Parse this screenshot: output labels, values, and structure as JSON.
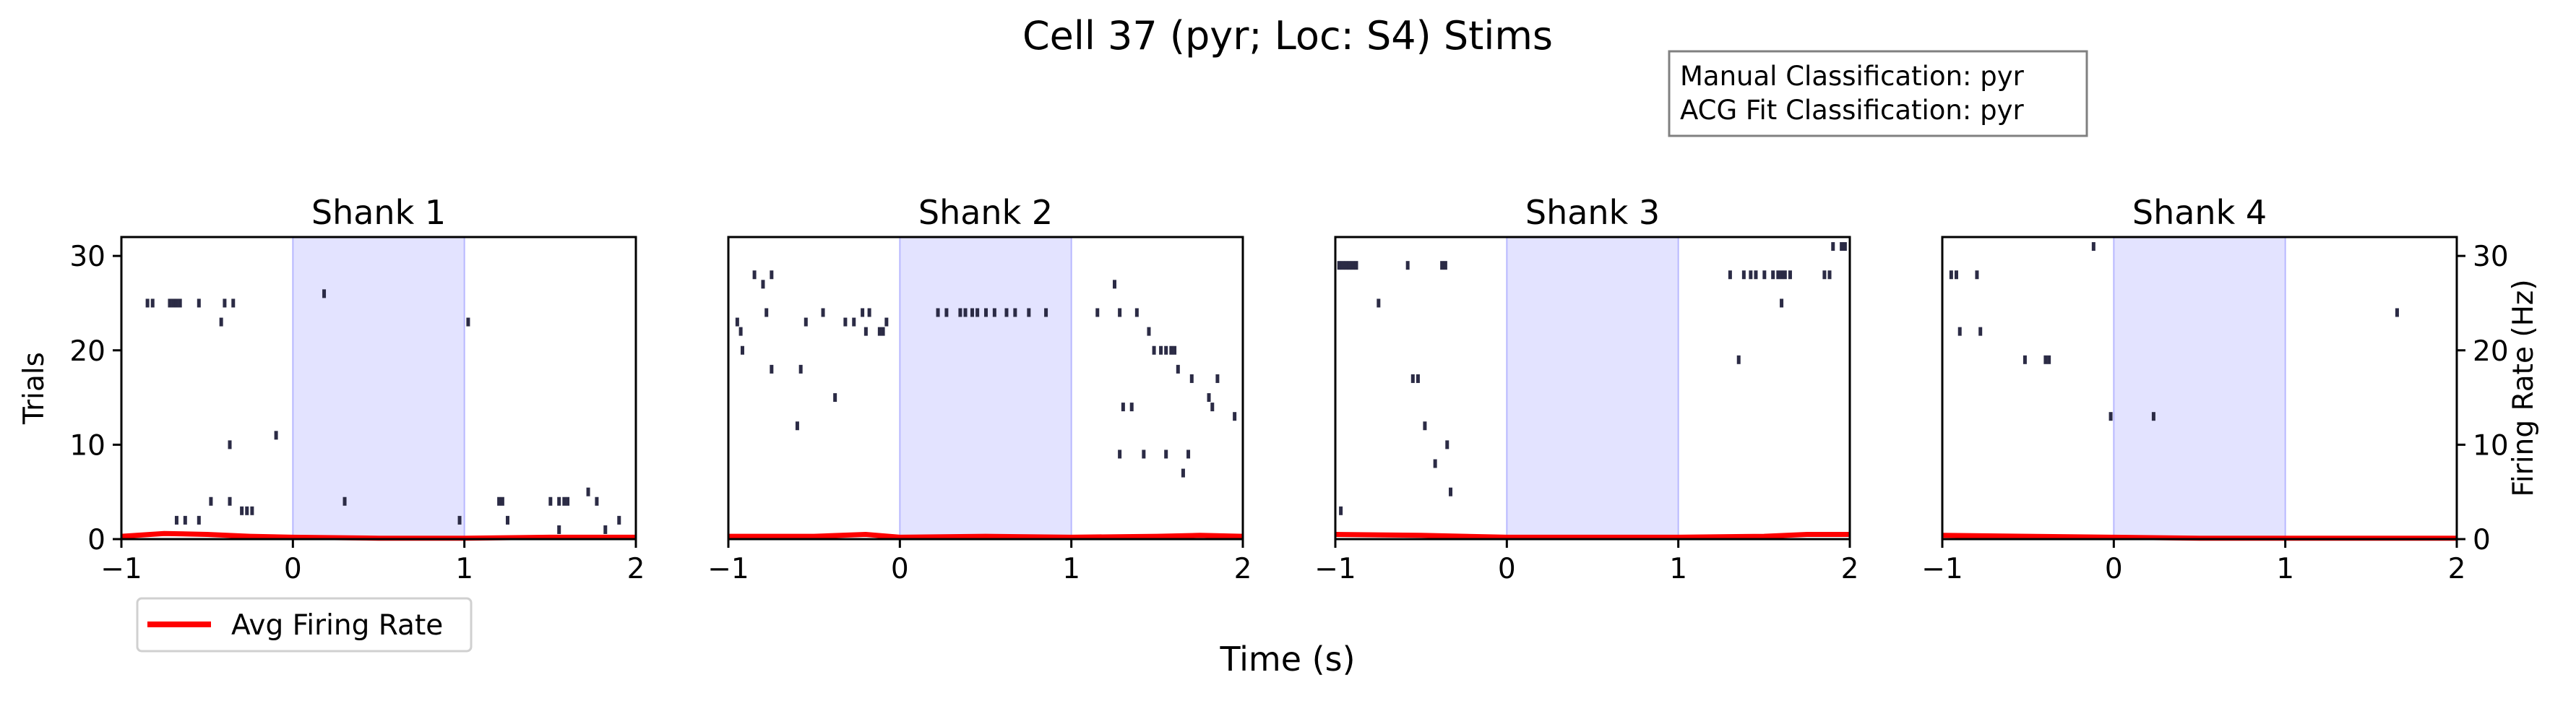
{
  "title": "Cell 37 (pyr; Loc: S4) Stims",
  "classification": {
    "line1": "Manual Classification: pyr",
    "line2": "ACG Fit Classification: pyr"
  },
  "shared_xlabel": "Time (s)",
  "legend": {
    "label": "Avg Firing Rate",
    "color": "#ff0000",
    "placement": "below first panel"
  },
  "colors": {
    "spike": "#2b2b45",
    "stim": "#e3e3ff",
    "rate": "#ff0000"
  },
  "chart_data": [
    {
      "type": "raster",
      "title": "Shank 1",
      "ylabel": "Trials",
      "xlim": [
        -1,
        2
      ],
      "ylim": [
        0,
        32
      ],
      "xticks": [
        "−1",
        "0",
        "1",
        "2"
      ],
      "yticks": [
        "0",
        "10",
        "20",
        "30"
      ],
      "stim_window": [
        0,
        1
      ],
      "spikes": [
        [
          -0.85,
          25
        ],
        [
          -0.82,
          25
        ],
        [
          -0.72,
          25
        ],
        [
          -0.7,
          25
        ],
        [
          -0.68,
          25
        ],
        [
          -0.66,
          25
        ],
        [
          -0.55,
          25
        ],
        [
          -0.4,
          25
        ],
        [
          -0.35,
          25
        ],
        [
          -0.42,
          23
        ],
        [
          -0.68,
          2
        ],
        [
          -0.63,
          2
        ],
        [
          -0.55,
          2
        ],
        [
          -0.48,
          4
        ],
        [
          -0.37,
          4
        ],
        [
          -0.3,
          3
        ],
        [
          -0.27,
          3
        ],
        [
          -0.24,
          3
        ],
        [
          -0.37,
          10
        ],
        [
          -0.1,
          11
        ],
        [
          0.18,
          26
        ],
        [
          0.3,
          4
        ],
        [
          1.02,
          23
        ],
        [
          0.97,
          2
        ],
        [
          1.2,
          4
        ],
        [
          1.22,
          4
        ],
        [
          1.25,
          2
        ],
        [
          1.5,
          4
        ],
        [
          1.55,
          4
        ],
        [
          1.58,
          4
        ],
        [
          1.6,
          4
        ],
        [
          1.55,
          1
        ],
        [
          1.72,
          5
        ],
        [
          1.77,
          4
        ],
        [
          1.82,
          1
        ],
        [
          1.9,
          2
        ]
      ],
      "rate": {
        "x": [
          -1,
          -0.75,
          -0.5,
          -0.25,
          0,
          0.5,
          1,
          1.5,
          2
        ],
        "y": [
          0.3,
          0.6,
          0.5,
          0.3,
          0.2,
          0.1,
          0.1,
          0.2,
          0.2
        ]
      },
      "right_axis": false
    },
    {
      "type": "raster",
      "title": "Shank 2",
      "ylabel": "",
      "xlim": [
        -1,
        2
      ],
      "ylim": [
        0,
        32
      ],
      "xticks": [
        "−1",
        "0",
        "1",
        "2"
      ],
      "yticks": [],
      "stim_window": [
        0,
        1
      ],
      "spikes": [
        [
          -0.85,
          28
        ],
        [
          -0.8,
          27
        ],
        [
          -0.75,
          28
        ],
        [
          -0.78,
          24
        ],
        [
          -0.95,
          23
        ],
        [
          -0.93,
          22
        ],
        [
          -0.92,
          20
        ],
        [
          -0.75,
          18
        ],
        [
          -0.58,
          18
        ],
        [
          -0.55,
          23
        ],
        [
          -0.45,
          24
        ],
        [
          -0.6,
          12
        ],
        [
          -0.38,
          15
        ],
        [
          -0.32,
          23
        ],
        [
          -0.22,
          24
        ],
        [
          -0.2,
          22
        ],
        [
          -0.18,
          24
        ],
        [
          -0.12,
          22
        ],
        [
          -0.1,
          22
        ],
        [
          -0.08,
          23
        ],
        [
          -0.27,
          23
        ],
        [
          0.22,
          24
        ],
        [
          0.27,
          24
        ],
        [
          0.35,
          24
        ],
        [
          0.38,
          24
        ],
        [
          0.42,
          24
        ],
        [
          0.45,
          24
        ],
        [
          0.5,
          24
        ],
        [
          0.55,
          24
        ],
        [
          0.62,
          24
        ],
        [
          0.67,
          24
        ],
        [
          0.75,
          24
        ],
        [
          0.85,
          24
        ],
        [
          1.15,
          24
        ],
        [
          1.25,
          27
        ],
        [
          1.28,
          24
        ],
        [
          1.38,
          24
        ],
        [
          1.45,
          22
        ],
        [
          1.48,
          20
        ],
        [
          1.52,
          20
        ],
        [
          1.55,
          20
        ],
        [
          1.58,
          20
        ],
        [
          1.6,
          20
        ],
        [
          1.62,
          18
        ],
        [
          1.7,
          17
        ],
        [
          1.8,
          15
        ],
        [
          1.82,
          14
        ],
        [
          1.85,
          17
        ],
        [
          1.95,
          13
        ],
        [
          1.28,
          9
        ],
        [
          1.3,
          14
        ],
        [
          1.35,
          14
        ],
        [
          1.42,
          9
        ],
        [
          1.55,
          9
        ],
        [
          1.65,
          7
        ],
        [
          1.68,
          9
        ]
      ],
      "rate": {
        "x": [
          -1,
          -0.5,
          -0.2,
          0,
          0.5,
          1,
          1.5,
          1.75,
          2
        ],
        "y": [
          0.3,
          0.3,
          0.5,
          0.2,
          0.3,
          0.2,
          0.3,
          0.4,
          0.3
        ]
      },
      "right_axis": false
    },
    {
      "type": "raster",
      "title": "Shank 3",
      "ylabel": "",
      "xlim": [
        -1,
        2
      ],
      "ylim": [
        0,
        32
      ],
      "xticks": [
        "−1",
        "0",
        "1",
        "2"
      ],
      "yticks": [],
      "stim_window": [
        0,
        1
      ],
      "spikes": [
        [
          -0.98,
          29
        ],
        [
          -0.96,
          29
        ],
        [
          -0.94,
          29
        ],
        [
          -0.92,
          29
        ],
        [
          -0.9,
          29
        ],
        [
          -0.88,
          29
        ],
        [
          -0.75,
          25
        ],
        [
          -0.58,
          29
        ],
        [
          -0.38,
          29
        ],
        [
          -0.36,
          29
        ],
        [
          -0.55,
          17
        ],
        [
          -0.52,
          17
        ],
        [
          -0.48,
          12
        ],
        [
          -0.35,
          10
        ],
        [
          -0.42,
          8
        ],
        [
          -0.33,
          5
        ],
        [
          -0.97,
          3
        ],
        [
          1.3,
          28
        ],
        [
          1.38,
          28
        ],
        [
          1.42,
          28
        ],
        [
          1.45,
          28
        ],
        [
          1.5,
          28
        ],
        [
          1.55,
          28
        ],
        [
          1.58,
          28
        ],
        [
          1.6,
          28
        ],
        [
          1.62,
          28
        ],
        [
          1.65,
          28
        ],
        [
          1.85,
          28
        ],
        [
          1.88,
          28
        ],
        [
          1.9,
          31
        ],
        [
          1.95,
          31
        ],
        [
          1.97,
          31
        ],
        [
          1.6,
          25
        ],
        [
          1.35,
          19
        ]
      ],
      "rate": {
        "x": [
          -1,
          -0.5,
          0,
          0.5,
          1,
          1.5,
          1.75,
          2
        ],
        "y": [
          0.5,
          0.4,
          0.2,
          0.2,
          0.2,
          0.3,
          0.5,
          0.5
        ]
      },
      "right_axis": false
    },
    {
      "type": "raster",
      "title": "Shank 4",
      "ylabel": "Firing Rate (Hz)",
      "xlim": [
        -1,
        2
      ],
      "ylim": [
        0,
        32
      ],
      "xticks": [
        "−1",
        "0",
        "1",
        "2"
      ],
      "yticks": [
        "0",
        "10",
        "20",
        "30"
      ],
      "stim_window": [
        0,
        1
      ],
      "spikes": [
        [
          -0.95,
          28
        ],
        [
          -0.92,
          28
        ],
        [
          -0.8,
          28
        ],
        [
          -0.9,
          22
        ],
        [
          -0.78,
          22
        ],
        [
          -0.52,
          19
        ],
        [
          -0.4,
          19
        ],
        [
          -0.38,
          19
        ],
        [
          -0.12,
          31
        ],
        [
          -0.02,
          13
        ],
        [
          0.23,
          13
        ],
        [
          1.65,
          24
        ]
      ],
      "rate": {
        "x": [
          -1,
          -0.5,
          0,
          0.5,
          1,
          1.5,
          2
        ],
        "y": [
          0.4,
          0.3,
          0.2,
          0.1,
          0.1,
          0.1,
          0.1
        ]
      },
      "right_axis": true
    }
  ]
}
